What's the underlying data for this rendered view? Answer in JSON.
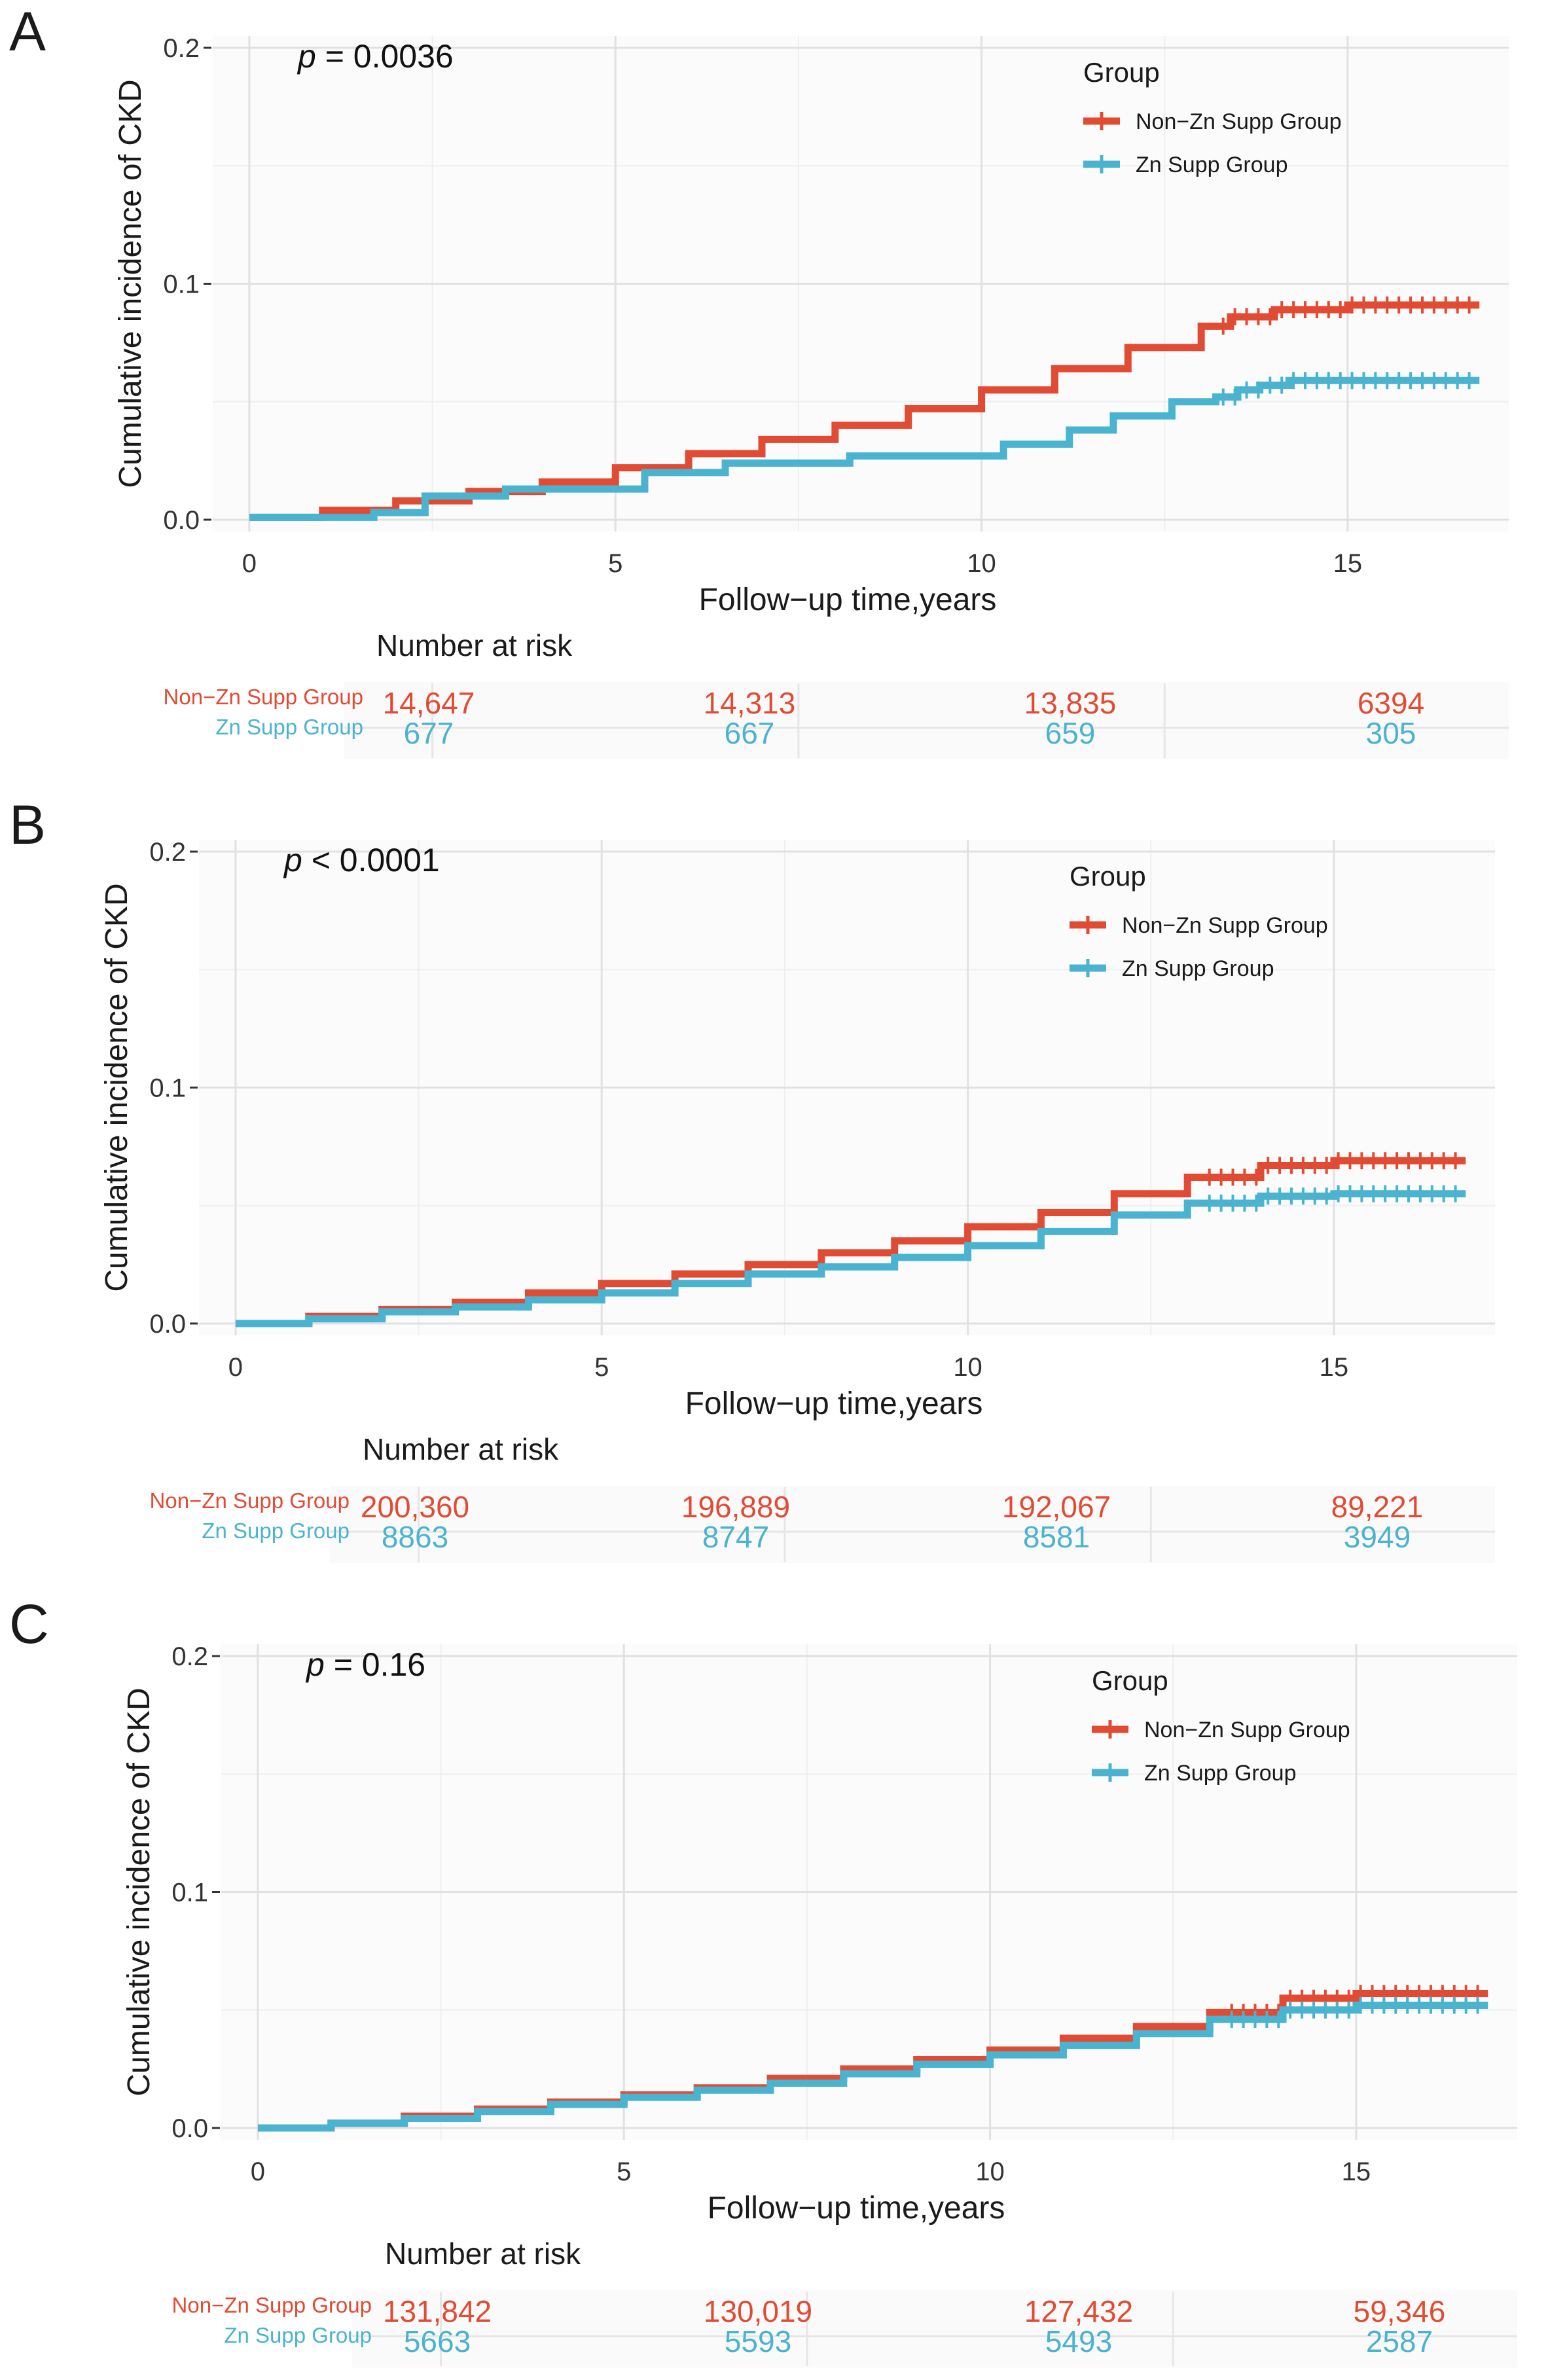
{
  "colors": {
    "non_zn": "#E24B33",
    "zn": "#4AB3CF",
    "grid_major": "#e1e1e1",
    "grid_minor": "#efefef",
    "panel_bg": "#fbfbfb"
  },
  "chart_data": [
    {
      "panel": "A",
      "type": "line",
      "p_label": "p",
      "p_rest": " = 0.0036",
      "ylabel": "Cumulative incidence of CKD",
      "xlabel": "Follow−up time,years",
      "xlim": [
        -0.5,
        17.2
      ],
      "ylim": [
        -0.005,
        0.205
      ],
      "xticks": [
        0,
        5,
        10,
        15
      ],
      "xtick_labels": [
        "0",
        "5",
        "10",
        "15"
      ],
      "yticks": [
        0.0,
        0.1,
        0.2
      ],
      "ytick_labels": [
        "0.0",
        "0.1",
        "0.2"
      ],
      "legend_title": "Group",
      "series": [
        {
          "name": "Non−Zn Supp Group",
          "color": "#E24B33",
          "x": [
            0,
            1,
            2,
            3,
            4,
            5,
            6,
            7,
            8,
            9,
            10,
            11,
            12,
            13,
            13.4,
            14,
            15,
            16,
            16.8
          ],
          "y": [
            0.001,
            0.004,
            0.008,
            0.012,
            0.016,
            0.022,
            0.028,
            0.034,
            0.04,
            0.047,
            0.055,
            0.064,
            0.073,
            0.082,
            0.086,
            0.089,
            0.091,
            0.091,
            0.091
          ]
        },
        {
          "name": "Zn Supp Group",
          "color": "#4AB3CF",
          "x": [
            0,
            1.7,
            2.4,
            3.5,
            5.4,
            6.5,
            8.2,
            10.3,
            11.2,
            11.8,
            12.6,
            13.2,
            13.5,
            13.8,
            14.2,
            16.8
          ],
          "y": [
            0.001,
            0.003,
            0.01,
            0.013,
            0.02,
            0.024,
            0.027,
            0.032,
            0.038,
            0.044,
            0.05,
            0.052,
            0.055,
            0.057,
            0.059,
            0.059
          ]
        }
      ],
      "risk_title": "Number at risk",
      "risk_table": [
        {
          "group": "Non−Zn Supp Group",
          "values": [
            "14,647",
            "14,313",
            "13,835",
            "6394"
          ]
        },
        {
          "group": "Zn Supp Group",
          "values": [
            "677",
            "667",
            "659",
            "305"
          ]
        }
      ]
    },
    {
      "panel": "B",
      "type": "line",
      "p_label": "p",
      "p_rest": " < 0.0001",
      "ylabel": "Cumulative incidence of CKD",
      "xlabel": "Follow−up time,years",
      "xlim": [
        -0.5,
        17.2
      ],
      "ylim": [
        -0.005,
        0.205
      ],
      "xticks": [
        0,
        5,
        10,
        15
      ],
      "xtick_labels": [
        "0",
        "5",
        "10",
        "15"
      ],
      "yticks": [
        0.0,
        0.1,
        0.2
      ],
      "ytick_labels": [
        "0.0",
        "0.1",
        "0.2"
      ],
      "legend_title": "Group",
      "series": [
        {
          "name": "Non−Zn Supp Group",
          "color": "#E24B33",
          "x": [
            0,
            1,
            2,
            3,
            4,
            5,
            6,
            7,
            8,
            9,
            10,
            11,
            12,
            13,
            14,
            15,
            16,
            16.8
          ],
          "y": [
            0.0,
            0.003,
            0.006,
            0.009,
            0.013,
            0.017,
            0.021,
            0.025,
            0.03,
            0.035,
            0.041,
            0.047,
            0.055,
            0.062,
            0.067,
            0.069,
            0.069,
            0.069
          ]
        },
        {
          "name": "Zn Supp Group",
          "color": "#4AB3CF",
          "x": [
            0,
            1,
            2,
            3,
            4,
            5,
            6,
            7,
            8,
            9,
            10,
            11,
            12,
            13,
            14,
            15,
            16,
            16.8
          ],
          "y": [
            0.0,
            0.002,
            0.005,
            0.007,
            0.01,
            0.013,
            0.017,
            0.021,
            0.024,
            0.028,
            0.033,
            0.039,
            0.046,
            0.051,
            0.054,
            0.055,
            0.055,
            0.055
          ]
        }
      ],
      "risk_title": "Number at risk",
      "risk_table": [
        {
          "group": "Non−Zn Supp Group",
          "values": [
            "200,360",
            "196,889",
            "192,067",
            "89,221"
          ]
        },
        {
          "group": "Zn Supp Group",
          "values": [
            "8863",
            "8747",
            "8581",
            "3949"
          ]
        }
      ]
    },
    {
      "panel": "C",
      "type": "line",
      "p_label": "p",
      "p_rest": " = 0.16",
      "ylabel": "Cumulative incidence of CKD",
      "xlabel": "Follow−up time,years",
      "xlim": [
        -0.5,
        17.2
      ],
      "ylim": [
        -0.005,
        0.205
      ],
      "xticks": [
        0,
        5,
        10,
        15
      ],
      "xtick_labels": [
        "0",
        "5",
        "10",
        "15"
      ],
      "yticks": [
        0.0,
        0.1,
        0.2
      ],
      "ytick_labels": [
        "0.0",
        "0.1",
        "0.2"
      ],
      "legend_title": "Group",
      "series": [
        {
          "name": "Non−Zn Supp Group",
          "color": "#E24B33",
          "x": [
            0,
            1,
            2,
            3,
            4,
            5,
            6,
            7,
            8,
            9,
            10,
            11,
            12,
            13,
            14,
            15,
            16,
            16.8
          ],
          "y": [
            0.0,
            0.002,
            0.005,
            0.008,
            0.011,
            0.014,
            0.017,
            0.021,
            0.025,
            0.029,
            0.033,
            0.038,
            0.043,
            0.049,
            0.055,
            0.057,
            0.057,
            0.057
          ]
        },
        {
          "name": "Zn Supp Group",
          "color": "#4AB3CF",
          "x": [
            0,
            1,
            2,
            3,
            4,
            5,
            6,
            7,
            8,
            9,
            10,
            11,
            12,
            13,
            14,
            15,
            16,
            16.8
          ],
          "y": [
            0.0,
            0.002,
            0.004,
            0.007,
            0.01,
            0.013,
            0.016,
            0.019,
            0.023,
            0.027,
            0.031,
            0.035,
            0.04,
            0.046,
            0.05,
            0.052,
            0.052,
            0.052
          ]
        }
      ],
      "risk_title": "Number at risk",
      "risk_table": [
        {
          "group": "Non−Zn Supp Group",
          "values": [
            "131,842",
            "130,019",
            "127,432",
            "59,346"
          ]
        },
        {
          "group": "Zn Supp Group",
          "values": [
            "5663",
            "5593",
            "5493",
            "2587"
          ]
        }
      ]
    }
  ]
}
